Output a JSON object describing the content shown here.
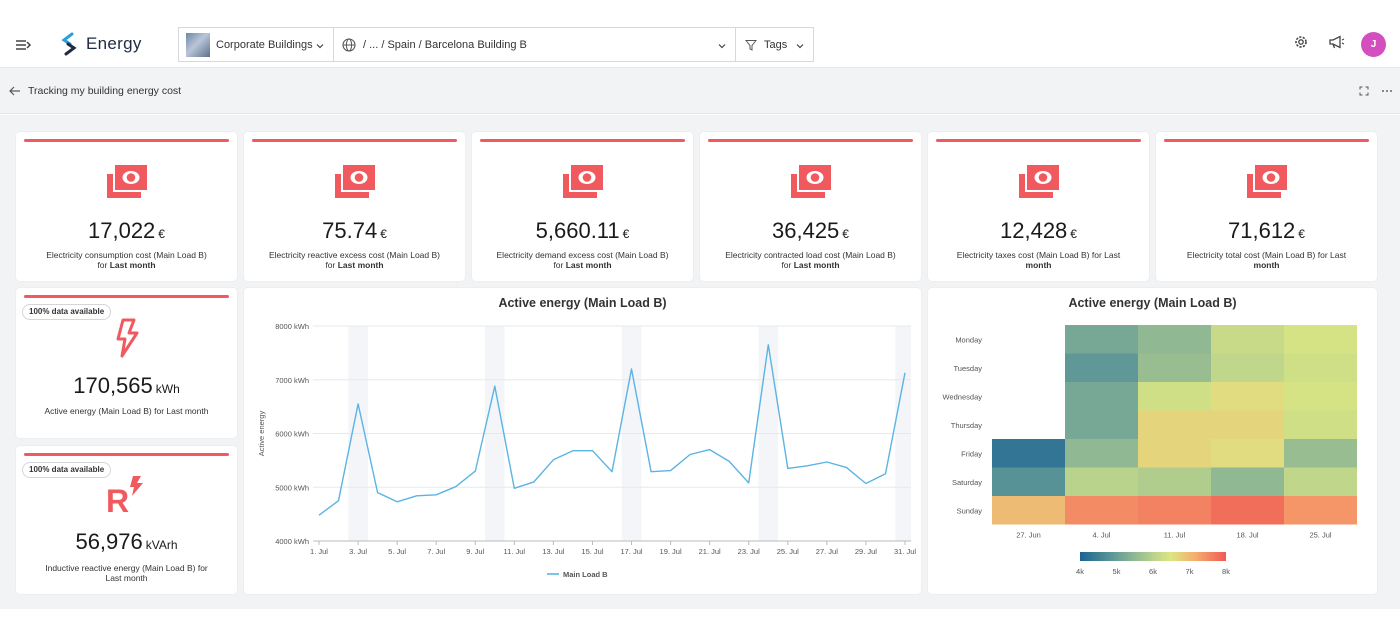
{
  "app": {
    "name": "Energy"
  },
  "header": {
    "building_selector": "Corporate Buildings",
    "path_selector": "/ ... / Spain / Barcelona Building B",
    "tags_label": "Tags",
    "avatar_initial": "J"
  },
  "subbar": {
    "title": "Tracking my building energy cost"
  },
  "kpis": [
    {
      "value": "17,022",
      "unit": "€",
      "label": "Electricity consumption cost (Main Load B)",
      "period_prefix": "for",
      "period": "Last month"
    },
    {
      "value": "75.74",
      "unit": "€",
      "label": "Electricity reactive excess cost (Main Load B)",
      "period_prefix": "for",
      "period": "Last month"
    },
    {
      "value": "5,660.11",
      "unit": "€",
      "label": "Electricity demand excess cost (Main Load B)",
      "period_prefix": "for",
      "period": "Last month"
    },
    {
      "value": "36,425",
      "unit": "€",
      "label": "Electricity contracted load cost (Main Load B)",
      "period_prefix": "for",
      "period": "Last month"
    },
    {
      "value": "12,428",
      "unit": "€",
      "label": "Electricity taxes cost (Main Load B) for Last",
      "period_prefix": "",
      "period": "month"
    },
    {
      "value": "71,612",
      "unit": "€",
      "label": "Electricity total cost (Main Load B) for Last",
      "period_prefix": "",
      "period": "month"
    }
  ],
  "energy_kpis": [
    {
      "badge": "100% data available",
      "value": "170,565",
      "unit": "kWh",
      "label": "Active energy (Main Load B) for Last month",
      "label2": ""
    },
    {
      "badge": "100% data available",
      "value": "56,976",
      "unit": "kVArh",
      "label": "Inductive reactive energy (Main Load B) for",
      "label2": "Last month"
    }
  ],
  "colors": {
    "accent": "#f05a5f",
    "line": "#5bb4e3",
    "avatar": "#d34fbf"
  },
  "icons": [
    "menu-toggle-icon",
    "energy-logo-icon",
    "building-thumbnail-icon",
    "globe-icon",
    "filter-icon",
    "gear-icon",
    "megaphone-icon",
    "back-arrow-icon",
    "expand-icon",
    "more-icon",
    "money-icon",
    "lightning-icon",
    "reactive-energy-icon"
  ],
  "chart_data": [
    {
      "type": "line",
      "title": "Active energy (Main Load B)",
      "ylabel": "Active energy",
      "xlabel": "",
      "ylim": [
        4000,
        8000
      ],
      "y_ticks": [
        "4000 kWh",
        "5000 kWh",
        "6000 kWh",
        "7000 kWh",
        "8000 kWh"
      ],
      "x_ticks": [
        "1. Jul",
        "3. Jul",
        "5. Jul",
        "7. Jul",
        "9. Jul",
        "11. Jul",
        "13. Jul",
        "15. Jul",
        "17. Jul",
        "19. Jul",
        "21. Jul",
        "23. Jul",
        "25. Jul",
        "27. Jul",
        "29. Jul",
        "31. Jul"
      ],
      "x": [
        1,
        2,
        3,
        4,
        5,
        6,
        7,
        8,
        9,
        10,
        11,
        12,
        13,
        14,
        15,
        16,
        17,
        18,
        19,
        20,
        21,
        22,
        23,
        24,
        25,
        26,
        27,
        28,
        29,
        30,
        31
      ],
      "grid": true,
      "legend": "bottom",
      "series": [
        {
          "name": "Main Load B",
          "values": [
            4480,
            4750,
            6550,
            4900,
            4730,
            4840,
            4860,
            5010,
            5300,
            6880,
            4980,
            5100,
            5510,
            5680,
            5680,
            5290,
            7200,
            5290,
            5310,
            5610,
            5700,
            5480,
            5080,
            7650,
            5350,
            5400,
            5470,
            5370,
            5070,
            5250,
            7130
          ]
        }
      ]
    },
    {
      "type": "heatmap",
      "title": "Active energy (Main Load B)",
      "rows": [
        "Monday",
        "Tuesday",
        "Wednesday",
        "Thursday",
        "Friday",
        "Saturday",
        "Sunday"
      ],
      "columns": [
        "27. Jun",
        "4. Jul",
        "11. Jul",
        "18. Jul",
        "25. Jul"
      ],
      "values": [
        [
          null,
          5200,
          5500,
          6200,
          6400
        ],
        [
          null,
          4900,
          5600,
          6100,
          6300
        ],
        [
          null,
          5200,
          6300,
          6600,
          6400
        ],
        [
          null,
          5200,
          6700,
          6700,
          6300
        ],
        [
          4300,
          5500,
          6700,
          6600,
          5600
        ],
        [
          4800,
          6000,
          5900,
          5500,
          6100
        ],
        [
          7000,
          7500,
          7600,
          7800,
          7400
        ]
      ],
      "color_scale": {
        "min": 4000,
        "max": 8000,
        "ticks": [
          "4k",
          "5k",
          "6k",
          "7k",
          "8k"
        ]
      },
      "legend": "bottom"
    }
  ]
}
